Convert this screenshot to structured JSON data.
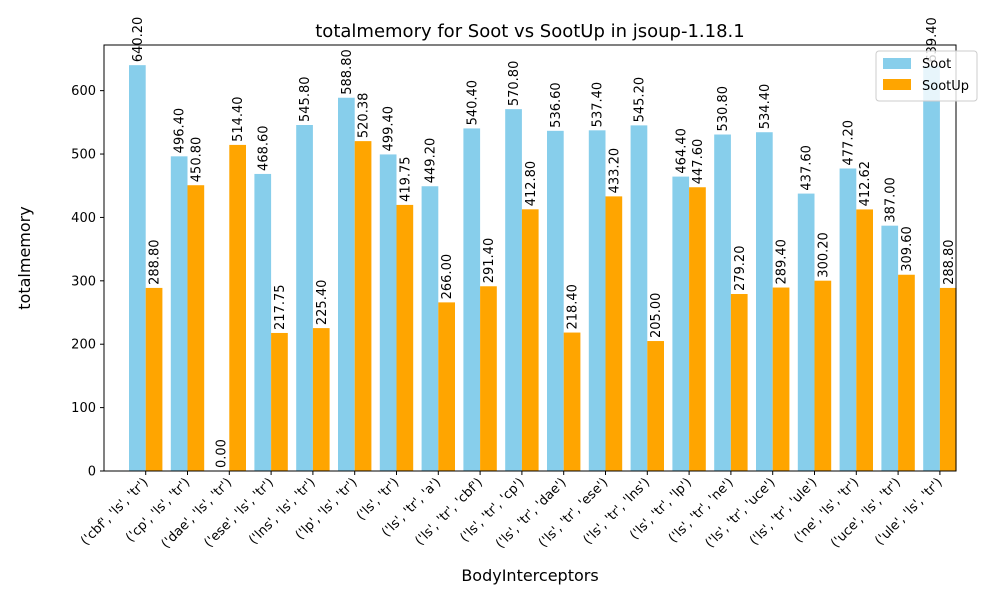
{
  "chart_data": {
    "type": "bar",
    "title": "totalmemory for Soot vs SootUp in jsoup-1.18.1",
    "xlabel": "BodyInterceptors",
    "ylabel": "totalmemory",
    "ylim": [
      0,
      672
    ],
    "yticks": [
      0,
      100,
      200,
      300,
      400,
      500,
      600
    ],
    "grid": false,
    "legend_position": "top-right",
    "categories": [
      "('cbf', 'ls', 'tr')",
      "('cp', 'ls', 'tr')",
      "('dae', 'ls', 'tr')",
      "('ese', 'ls', 'tr')",
      "('lns', 'ls', 'tr')",
      "('lp', 'ls', 'tr')",
      "('ls', 'tr')",
      "('ls', 'tr', 'a')",
      "('ls', 'tr', 'cbf')",
      "('ls', 'tr', 'cp')",
      "('ls', 'tr', 'dae')",
      "('ls', 'tr', 'ese')",
      "('ls', 'tr', 'lns')",
      "('ls', 'tr', 'lp')",
      "('ls', 'tr', 'ne')",
      "('ls', 'tr', 'uce')",
      "('ls', 'tr', 'ule')",
      "('ne', 'ls', 'tr')",
      "('uce', 'ls', 'tr')",
      "('ule', 'ls', 'tr')"
    ],
    "series": [
      {
        "name": "Soot",
        "color": "#87ceeb",
        "values": [
          640.2,
          496.4,
          0.0,
          468.6,
          545.8,
          588.8,
          499.4,
          449.2,
          540.4,
          570.8,
          536.6,
          537.4,
          545.2,
          464.4,
          530.8,
          534.4,
          437.6,
          477.2,
          387.0,
          639.4
        ],
        "labels": [
          "640.20",
          "496.40",
          "0.00",
          "468.60",
          "545.80",
          "588.80",
          "499.40",
          "449.20",
          "540.40",
          "570.80",
          "536.60",
          "537.40",
          "545.20",
          "464.40",
          "530.80",
          "534.40",
          "437.60",
          "477.20",
          "387.00",
          "639.40"
        ]
      },
      {
        "name": "SootUp",
        "color": "#ffa500",
        "values": [
          288.8,
          450.8,
          514.4,
          217.75,
          225.4,
          520.38,
          419.75,
          266.0,
          291.4,
          412.8,
          218.4,
          433.2,
          205.0,
          447.6,
          279.2,
          289.4,
          300.2,
          412.62,
          309.6,
          288.8
        ],
        "labels": [
          "288.80",
          "450.80",
          "514.40",
          "217.75",
          "225.40",
          "520.38",
          "419.75",
          "266.00",
          "291.40",
          "412.80",
          "218.40",
          "433.20",
          "205.00",
          "447.60",
          "279.20",
          "289.40",
          "300.20",
          "412.62",
          "309.60",
          "288.80"
        ]
      }
    ]
  }
}
